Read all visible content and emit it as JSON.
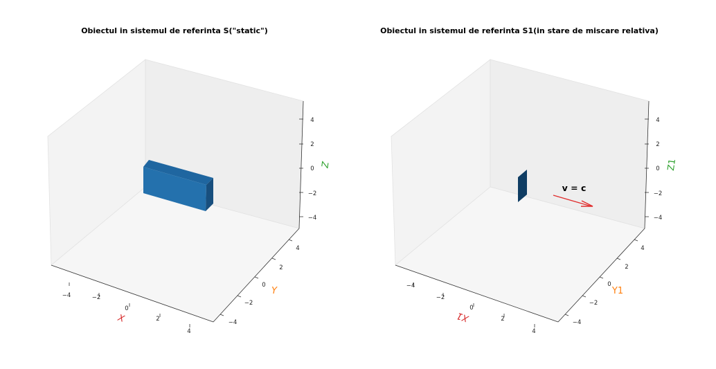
{
  "colors": {
    "pane_left": "#f3f3f3",
    "pane_right": "#eeeeee",
    "pane_floor": "#f6f6f6",
    "axis_line": "#333333",
    "box_front": "#2471ad",
    "box_top": "#1f66a0",
    "box_side": "#184f7e",
    "flat_object": "#0f3d63",
    "arrow": "#e02b2b",
    "x_label": "#d62728",
    "y_label": "#ff7f0e",
    "z_label": "#2ca02c"
  },
  "chart_data": [
    {
      "type": "3d-bar",
      "title": "Obiectul in sistemul de referinta S(\"static\")",
      "xlabel": "X",
      "ylabel": "Y",
      "zlabel": "Z",
      "xlim": [
        -5,
        5
      ],
      "ylim": [
        -5,
        5
      ],
      "zlim": [
        -5,
        5
      ],
      "x_ticks": [
        "−4",
        "−2",
        "0",
        "2",
        "4"
      ],
      "y_ticks": [
        "−4",
        "−2",
        "0",
        "2",
        "4"
      ],
      "z_ticks": [
        "4",
        "2",
        "0",
        "−2",
        "−4"
      ],
      "grid": false,
      "objects": [
        {
          "kind": "box",
          "x": [
            -1,
            1
          ],
          "y": [
            -3,
            3
          ],
          "z": [
            -3,
            0
          ]
        }
      ]
    },
    {
      "type": "3d-bar",
      "title": "Obiectul in sistemul de referinta S1(in stare de miscare relativa)",
      "xlabel": "X1",
      "ylabel": "Y1",
      "zlabel": "Z1",
      "xlim": [
        -5,
        5
      ],
      "ylim": [
        -5,
        5
      ],
      "zlim": [
        -5,
        5
      ],
      "x_ticks": [
        "−4",
        "−2",
        "0",
        "2",
        "4"
      ],
      "y_ticks": [
        "−4",
        "−2",
        "0",
        "2",
        "4"
      ],
      "z_ticks": [
        "4",
        "2",
        "0",
        "−2",
        "−4"
      ],
      "grid": false,
      "objects": [
        {
          "kind": "box",
          "x": [
            -1,
            1
          ],
          "y": [
            -3,
            -3
          ],
          "z": [
            -3,
            0
          ]
        }
      ],
      "annotation": {
        "text": "v = c",
        "position": [
          0,
          1,
          0
        ]
      },
      "arrow": {
        "from": [
          0,
          0,
          0
        ],
        "to": [
          0,
          4,
          0
        ]
      }
    }
  ]
}
